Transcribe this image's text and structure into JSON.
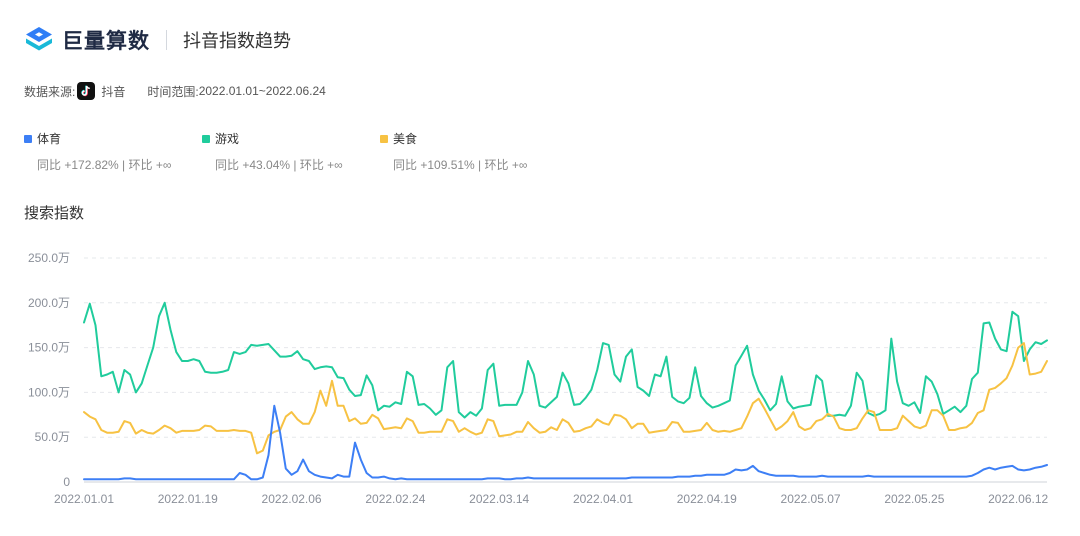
{
  "header": {
    "brand": "巨量算数",
    "page_title": "抖音指数趋势"
  },
  "source": {
    "label": "数据来源:",
    "platform": "抖音",
    "range_label": "时间范围:",
    "range_value": "2022.01.01~2022.06.24"
  },
  "legend": [
    {
      "name": "体育",
      "color": "#3d7ff5",
      "compare": "同比 +172.82% | 环比 +∞"
    },
    {
      "name": "游戏",
      "color": "#20cc9c",
      "compare": "同比 +43.04% | 环比 +∞"
    },
    {
      "name": "美食",
      "color": "#f7c243",
      "compare": "同比 +109.51% | 环比 +∞"
    }
  ],
  "section_title": "搜索指数",
  "chart_data": {
    "type": "line",
    "title": "",
    "xlabel": "",
    "ylabel": "",
    "ylim": [
      0,
      250
    ],
    "y_unit": "万",
    "y_ticks": [
      "0",
      "50.0万",
      "100.0万",
      "150.0万",
      "200.0万",
      "250.0万"
    ],
    "x_tick_labels": [
      "2022.01.01",
      "2022.01.19",
      "2022.02.06",
      "2022.02.24",
      "2022.03.14",
      "2022.04.01",
      "2022.04.19",
      "2022.05.07",
      "2022.05.25",
      "2022.06.12"
    ],
    "x_start": "2022.01.01",
    "x_end": "2022.06.24",
    "grid": true,
    "series": [
      {
        "name": "游戏",
        "color": "#20cc9c",
        "values": [
          178,
          199,
          175,
          118,
          120,
          123,
          100,
          125,
          120,
          100,
          110,
          130,
          150,
          185,
          200,
          170,
          145,
          135,
          135,
          137,
          135,
          123,
          122,
          122,
          123,
          125,
          145,
          143,
          145,
          153,
          152,
          153,
          154,
          147,
          140,
          140,
          141,
          146,
          137,
          135,
          126,
          128,
          129,
          128,
          117,
          116,
          103,
          96,
          97,
          119,
          108,
          80,
          85,
          84,
          89,
          87,
          123,
          118,
          86,
          87,
          82,
          75,
          80,
          128,
          135,
          78,
          72,
          78,
          74,
          82,
          125,
          132,
          85,
          86,
          86,
          86,
          100,
          135,
          120,
          85,
          83,
          89,
          95,
          122,
          110,
          86,
          87,
          94,
          103,
          125,
          155,
          153,
          120,
          112,
          140,
          148,
          106,
          102,
          96,
          120,
          118,
          140,
          95,
          90,
          88,
          94,
          128,
          96,
          88,
          83,
          85,
          88,
          91,
          130,
          141,
          152,
          120,
          102,
          92,
          80,
          87,
          118,
          90,
          82,
          84,
          85,
          86,
          119,
          113,
          74,
          74,
          75,
          74,
          85,
          122,
          113,
          77,
          74,
          76,
          80,
          160,
          112,
          88,
          85,
          89,
          77,
          118,
          112,
          98,
          76,
          80,
          84,
          78,
          85,
          115,
          122,
          177,
          178,
          160,
          148,
          146,
          190,
          185,
          135,
          148,
          156,
          154,
          158
        ]
      },
      {
        "name": "美食",
        "color": "#f7c243",
        "values": [
          78,
          73,
          70,
          58,
          55,
          55,
          56,
          68,
          66,
          54,
          58,
          55,
          54,
          58,
          63,
          60,
          55,
          57,
          57,
          57,
          58,
          63,
          62,
          57,
          57,
          57,
          58,
          57,
          57,
          55,
          32,
          35,
          52,
          56,
          58,
          73,
          78,
          70,
          65,
          65,
          78,
          102,
          85,
          113,
          85,
          85,
          68,
          71,
          65,
          66,
          75,
          71,
          59,
          60,
          61,
          60,
          71,
          68,
          55,
          55,
          56,
          56,
          56,
          70,
          68,
          56,
          60,
          56,
          53,
          55,
          70,
          68,
          51,
          52,
          53,
          56,
          56,
          67,
          60,
          55,
          56,
          61,
          58,
          70,
          66,
          56,
          57,
          60,
          62,
          70,
          66,
          64,
          75,
          74,
          70,
          60,
          65,
          65,
          55,
          56,
          57,
          58,
          67,
          66,
          56,
          56,
          57,
          58,
          66,
          58,
          56,
          57,
          56,
          58,
          60,
          73,
          88,
          93,
          82,
          70,
          58,
          62,
          68,
          78,
          62,
          58,
          60,
          68,
          70,
          76,
          73,
          60,
          58,
          58,
          60,
          71,
          80,
          78,
          58,
          58,
          58,
          60,
          74,
          68,
          62,
          60,
          63,
          80,
          80,
          74,
          58,
          58,
          60,
          61,
          66,
          77,
          80,
          103,
          105,
          110,
          116,
          130,
          150,
          155,
          120,
          121,
          123,
          135
        ]
      },
      {
        "name": "体育",
        "color": "#3d7ff5",
        "values": [
          3,
          3,
          3,
          3,
          3,
          3,
          3,
          4,
          4,
          3,
          3,
          3,
          3,
          3,
          3,
          3,
          3,
          3,
          3,
          3,
          3,
          3,
          3,
          3,
          3,
          3,
          3,
          10,
          8,
          3,
          3,
          5,
          30,
          85,
          55,
          15,
          8,
          12,
          25,
          12,
          8,
          6,
          5,
          4,
          8,
          6,
          6,
          44,
          25,
          10,
          5,
          5,
          6,
          4,
          3,
          4,
          3,
          3,
          3,
          3,
          3,
          3,
          3,
          3,
          3,
          3,
          3,
          3,
          3,
          3,
          4,
          4,
          4,
          3,
          3,
          4,
          4,
          5,
          4,
          4,
          4,
          4,
          4,
          4,
          4,
          4,
          4,
          4,
          4,
          4,
          4,
          4,
          4,
          4,
          4,
          5,
          5,
          5,
          5,
          5,
          5,
          5,
          5,
          6,
          6,
          6,
          7,
          7,
          8,
          8,
          8,
          8,
          10,
          14,
          13,
          14,
          18,
          12,
          10,
          8,
          7,
          7,
          7,
          7,
          6,
          6,
          6,
          6,
          7,
          6,
          6,
          6,
          6,
          6,
          6,
          6,
          7,
          6,
          6,
          6,
          6,
          6,
          6,
          6,
          6,
          6,
          6,
          6,
          6,
          6,
          6,
          6,
          6,
          6,
          7,
          10,
          14,
          16,
          14,
          16,
          17,
          18,
          14,
          13,
          14,
          16,
          17,
          19
        ]
      }
    ]
  }
}
